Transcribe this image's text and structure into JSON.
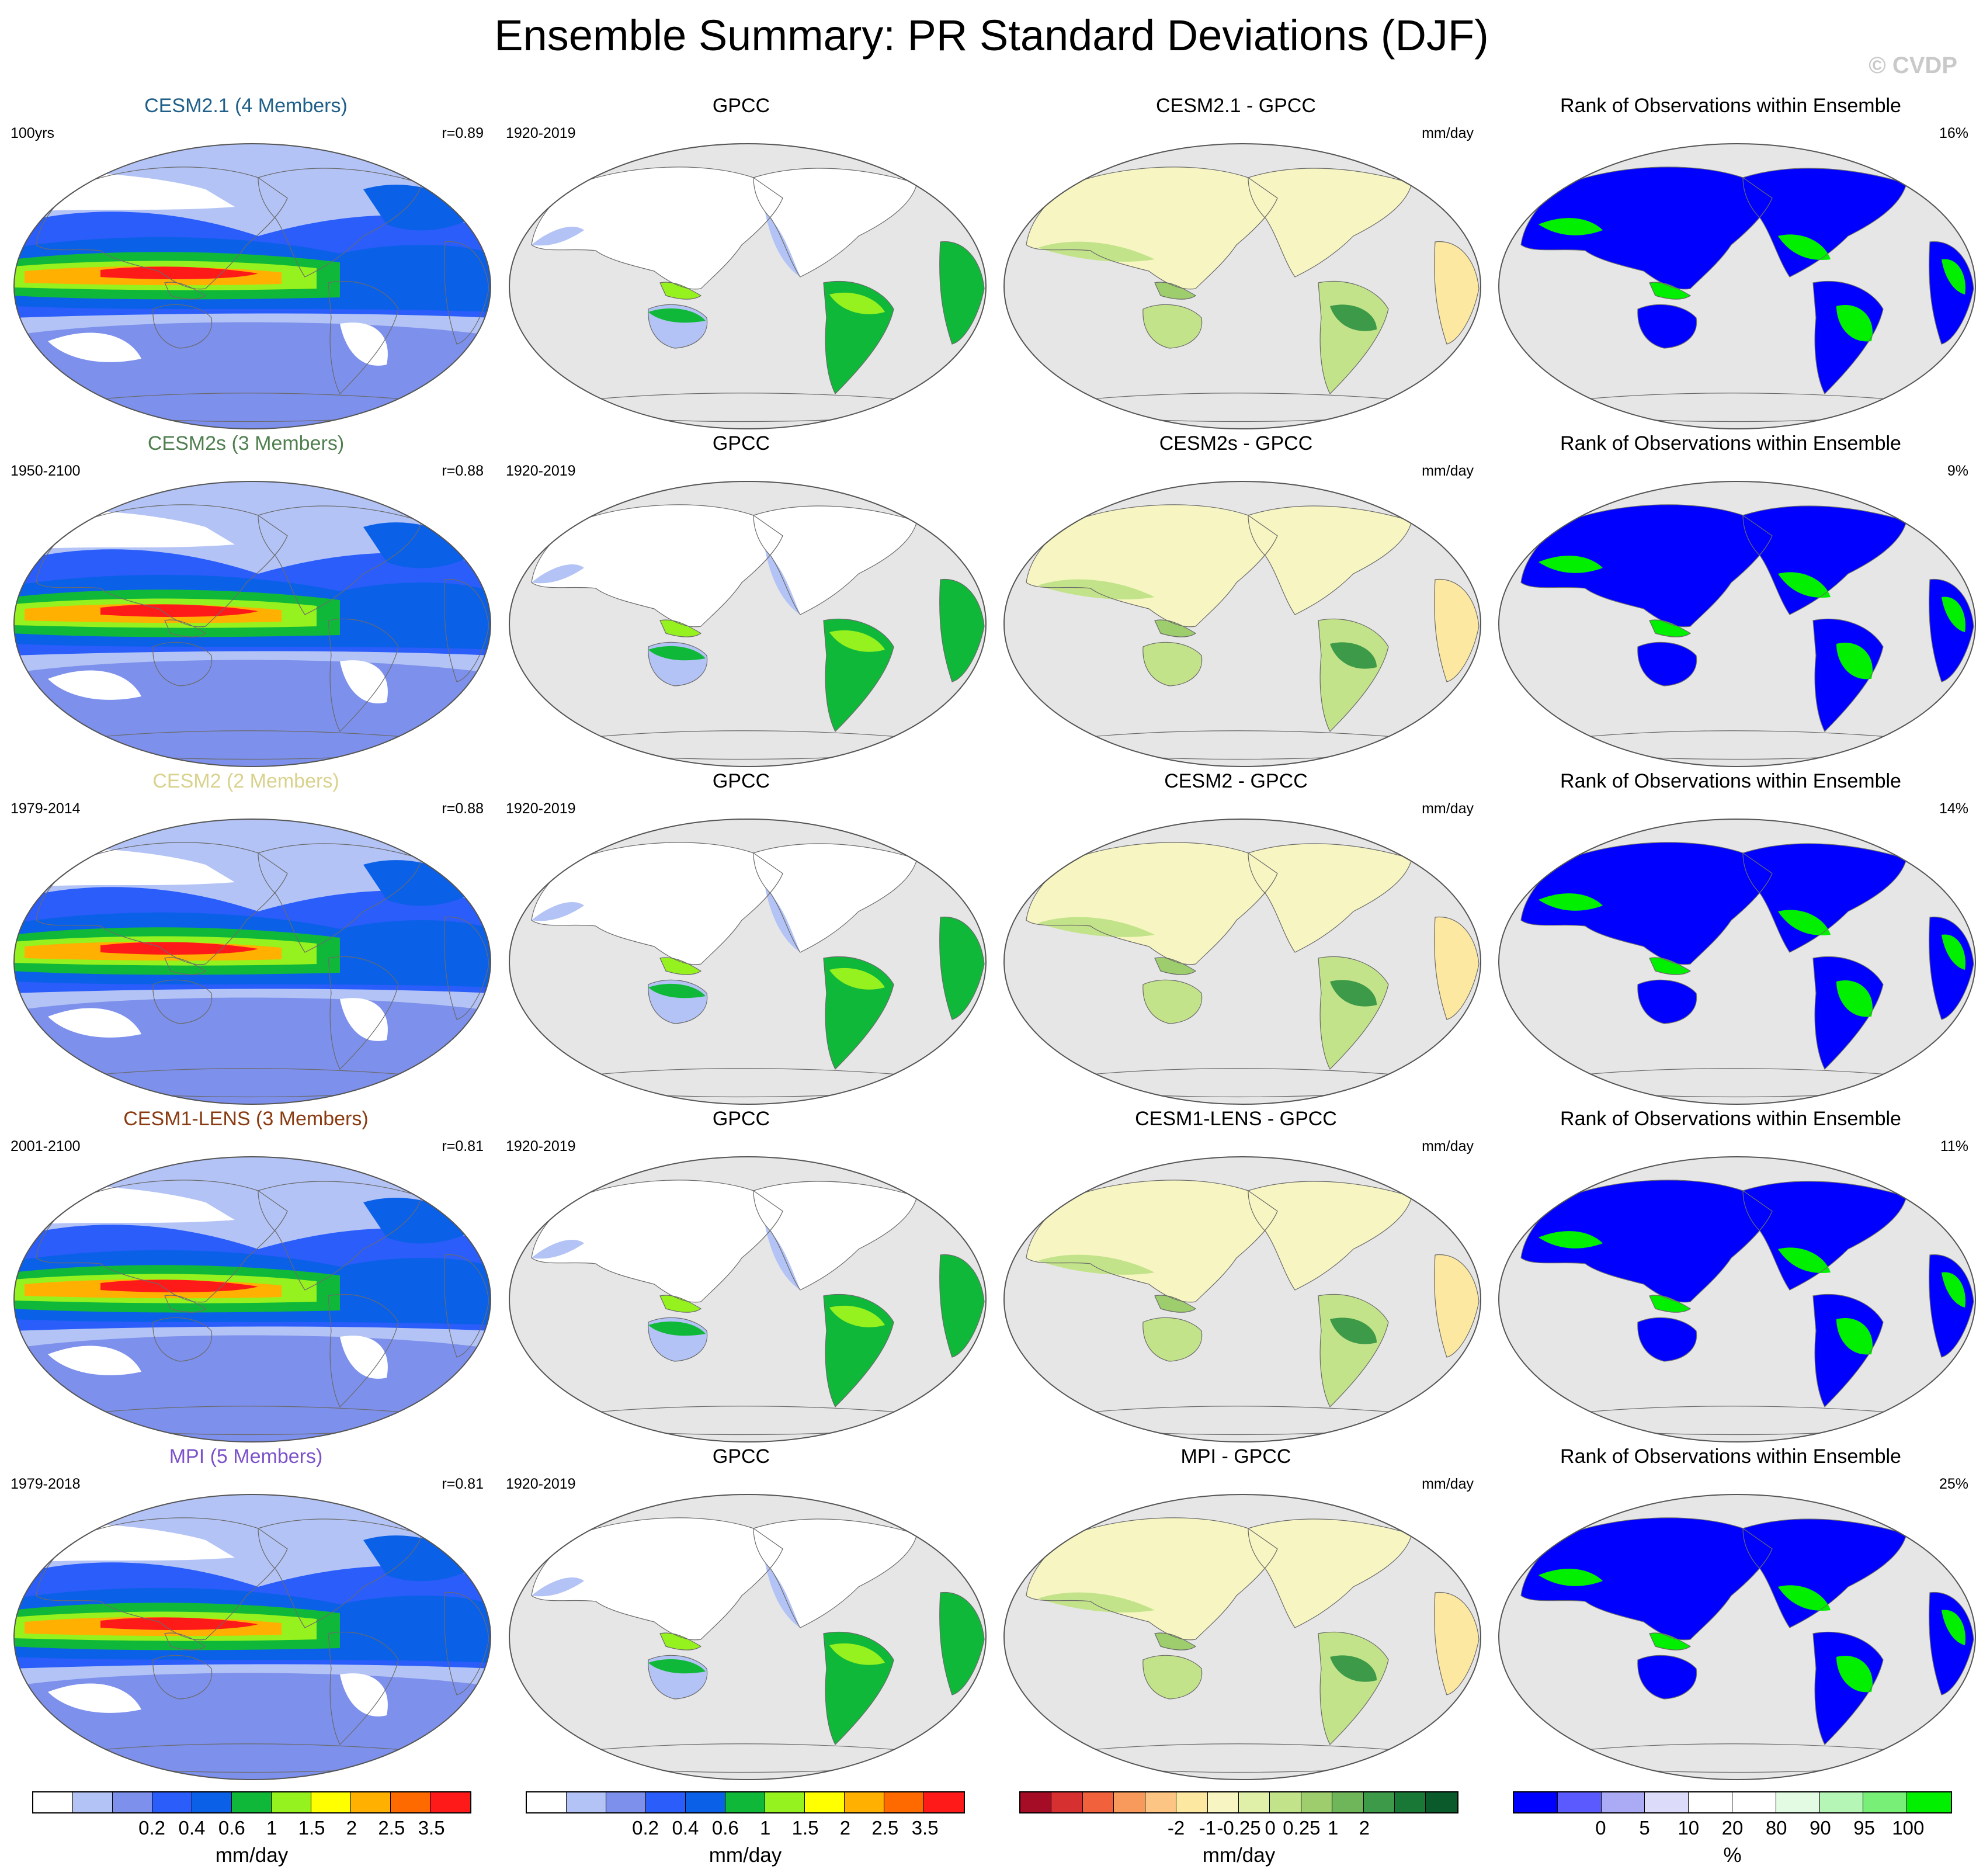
{
  "title": "Ensemble Summary: PR Standard Deviations (DJF)",
  "credit": "© CVDP",
  "colors": {
    "land": "#e6e6e6",
    "ocean_outline": "#888888",
    "model_scale": [
      "#ffffff",
      "#b3c3f5",
      "#7d90ec",
      "#2a5dfa",
      "#0b60e8",
      "#10b83a",
      "#96f21e",
      "#ffff00",
      "#ffb000",
      "#ff6a00",
      "#ff1a1a"
    ],
    "diff_scale": [
      "#a50c26",
      "#d63030",
      "#f0613c",
      "#f89a5c",
      "#fcc583",
      "#fde8a1",
      "#f7f6c2",
      "#e1f0a8",
      "#c3e38a",
      "#9dcd6c",
      "#6fb55a",
      "#3d9a48",
      "#1a7837",
      "#0b5a2c"
    ],
    "rank_scale": [
      "#0000ff",
      "#5a5aff",
      "#aaaaf5",
      "#dcdcfa",
      "#ffffff",
      "#ffffff",
      "#e3fbe3",
      "#b5f5b5",
      "#78f078",
      "#00f000"
    ]
  },
  "rows": [
    {
      "model": {
        "title": "CESM2.1 (4 Members)",
        "title_color": "#1f5f88",
        "left": "100yrs",
        "right": "r=0.89"
      },
      "obs": {
        "title": "GPCC",
        "left": "1920-2019"
      },
      "diff": {
        "title": "CESM2.1 - GPCC",
        "right": "mm/day"
      },
      "rank": {
        "title": "Rank of Observations within Ensemble",
        "right": "16%"
      }
    },
    {
      "model": {
        "title": "CESM2s (3 Members)",
        "title_color": "#4f7f4f",
        "left": "1950-2100",
        "right": "r=0.88"
      },
      "obs": {
        "title": "GPCC",
        "left": "1920-2019"
      },
      "diff": {
        "title": "CESM2s - GPCC",
        "right": "mm/day"
      },
      "rank": {
        "title": "Rank of Observations within Ensemble",
        "right": "9%"
      }
    },
    {
      "model": {
        "title": "CESM2 (2 Members)",
        "title_color": "#d9d28c",
        "left": "1979-2014",
        "right": "r=0.88"
      },
      "obs": {
        "title": "GPCC",
        "left": "1920-2019"
      },
      "diff": {
        "title": "CESM2 - GPCC",
        "right": "mm/day"
      },
      "rank": {
        "title": "Rank of Observations within Ensemble",
        "right": "14%"
      }
    },
    {
      "model": {
        "title": "CESM1-LENS (3 Members)",
        "title_color": "#8a3a10",
        "left": "2001-2100",
        "right": "r=0.81"
      },
      "obs": {
        "title": "GPCC",
        "left": "1920-2019"
      },
      "diff": {
        "title": "CESM1-LENS - GPCC",
        "right": "mm/day"
      },
      "rank": {
        "title": "Rank of Observations within Ensemble",
        "right": "11%"
      }
    },
    {
      "model": {
        "title": "MPI (5 Members)",
        "title_color": "#7b52c9",
        "left": "1979-2018",
        "right": "r=0.81"
      },
      "obs": {
        "title": "GPCC",
        "left": "1920-2019"
      },
      "diff": {
        "title": "MPI - GPCC",
        "right": "mm/day"
      },
      "rank": {
        "title": "Rank of Observations within Ensemble",
        "right": "25%"
      }
    }
  ],
  "colorbars": [
    {
      "unit": "mm/day",
      "ticks": [
        "0.2",
        "0.4",
        "0.6",
        "1",
        "1.5",
        "2",
        "2.5",
        "3.5"
      ]
    },
    {
      "unit": "mm/day",
      "ticks": [
        "0.2",
        "0.4",
        "0.6",
        "1",
        "1.5",
        "2",
        "2.5",
        "3.5"
      ]
    },
    {
      "unit": "mm/day",
      "ticks": [
        "-2",
        "-1",
        "-0.25",
        "0",
        "0.25",
        "1",
        "2"
      ]
    },
    {
      "unit": "%",
      "ticks": [
        "0",
        "5",
        "10",
        "20",
        "80",
        "90",
        "95",
        "100"
      ]
    }
  ],
  "chart_data": {
    "type": "heatmap",
    "title": "Ensemble Summary: PR Standard Deviations (DJF)",
    "projection": "Robinson-like ellipse, Pacific-centred global map",
    "panel_columns": [
      "model",
      "obs",
      "diff",
      "rank"
    ],
    "pattern_correlations": [
      {
        "model": "CESM2.1 (4 Members)",
        "r": 0.89
      },
      {
        "model": "CESM2s (3 Members)",
        "r": 0.88
      },
      {
        "model": "CESM2 (2 Members)",
        "r": 0.88
      },
      {
        "model": "CESM1-LENS (3 Members)",
        "r": 0.81
      },
      {
        "model": "MPI (5 Members)",
        "r": 0.81
      }
    ],
    "rank_percent": [
      16,
      9,
      14,
      11,
      25
    ],
    "colorbar_levels_mm_day": [
      0.2,
      0.4,
      0.6,
      1,
      1.5,
      2,
      2.5,
      3.5
    ],
    "diff_levels_mm_day": [
      -2,
      -1,
      -0.25,
      0,
      0.25,
      1,
      2
    ],
    "rank_levels_percent": [
      0,
      5,
      10,
      20,
      80,
      90,
      95,
      100
    ]
  }
}
